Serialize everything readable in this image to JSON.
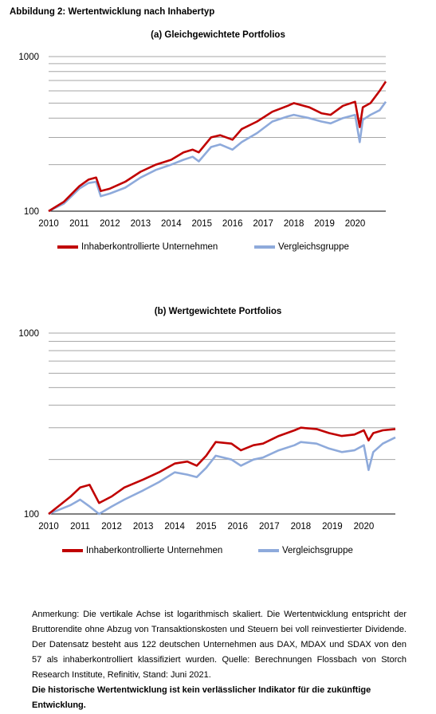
{
  "figure": {
    "title": "Abbildung 2: Wertentwicklung nach Inhabertyp"
  },
  "colors": {
    "inhaber": "#c00000",
    "vergleich": "#8eaadb",
    "grid": "#a6a6a6",
    "axis": "#000000"
  },
  "chart_data": [
    {
      "type": "line",
      "title": "(a) Gleichgewichtete Portfolios",
      "x_ticks": [
        "2010",
        "2011",
        "2012",
        "2013",
        "2014",
        "2015",
        "2016",
        "2017",
        "2018",
        "2019",
        "2020"
      ],
      "xlim": [
        2010,
        2021
      ],
      "y_scale": "log",
      "ylim": [
        100,
        1000
      ],
      "y_tick_labels": [
        "100",
        "1000"
      ],
      "grid": true,
      "legend_position": "bottom",
      "series": [
        {
          "name": "Inhaberkontrollierte Unternehmen",
          "color": "#c00000",
          "x": [
            2010.0,
            2010.5,
            2011.0,
            2011.3,
            2011.55,
            2011.7,
            2012.0,
            2012.5,
            2013.0,
            2013.5,
            2014.0,
            2014.4,
            2014.7,
            2014.9,
            2015.3,
            2015.6,
            2016.0,
            2016.3,
            2016.8,
            2017.3,
            2017.8,
            2018.0,
            2018.5,
            2018.9,
            2019.2,
            2019.6,
            2020.0,
            2020.15,
            2020.25,
            2020.5,
            2020.8,
            2021.0
          ],
          "values": [
            100,
            115,
            145,
            160,
            165,
            135,
            140,
            155,
            180,
            200,
            215,
            240,
            250,
            240,
            300,
            310,
            290,
            340,
            380,
            440,
            480,
            500,
            470,
            430,
            420,
            480,
            510,
            350,
            470,
            500,
            600,
            690
          ]
        },
        {
          "name": "Vergleichsgruppe",
          "color": "#8eaadb",
          "x": [
            2010.0,
            2010.5,
            2011.0,
            2011.3,
            2011.55,
            2011.7,
            2012.0,
            2012.5,
            2013.0,
            2013.5,
            2014.0,
            2014.4,
            2014.7,
            2014.9,
            2015.3,
            2015.6,
            2016.0,
            2016.3,
            2016.8,
            2017.3,
            2017.8,
            2018.0,
            2018.5,
            2018.9,
            2019.2,
            2019.6,
            2020.0,
            2020.15,
            2020.25,
            2020.5,
            2020.8,
            2021.0
          ],
          "values": [
            100,
            112,
            140,
            152,
            155,
            125,
            130,
            142,
            165,
            185,
            200,
            215,
            225,
            210,
            260,
            270,
            250,
            280,
            320,
            380,
            410,
            420,
            400,
            380,
            370,
            400,
            420,
            280,
            390,
            420,
            450,
            510
          ]
        }
      ]
    },
    {
      "type": "line",
      "title": "(b) Wertgewichtete Portfolios",
      "x_ticks": [
        "2010",
        "2011",
        "2012",
        "2013",
        "2014",
        "2015",
        "2016",
        "2017",
        "2018",
        "2019",
        "2020"
      ],
      "xlim": [
        2010,
        2021
      ],
      "y_scale": "log",
      "ylim": [
        100,
        1000
      ],
      "y_tick_labels": [
        "100",
        "1000"
      ],
      "grid": true,
      "legend_position": "bottom",
      "series": [
        {
          "name": "Inhaberkontrollierte Unternehmen",
          "color": "#c00000",
          "x": [
            2010.0,
            2010.3,
            2010.7,
            2011.0,
            2011.3,
            2011.6,
            2012.0,
            2012.4,
            2013.0,
            2013.5,
            2014.0,
            2014.4,
            2014.7,
            2015.0,
            2015.3,
            2015.8,
            2016.1,
            2016.5,
            2016.8,
            2017.3,
            2017.8,
            2018.0,
            2018.5,
            2018.9,
            2019.3,
            2019.7,
            2020.0,
            2020.15,
            2020.3,
            2020.6,
            2021.0
          ],
          "values": [
            100,
            110,
            125,
            140,
            145,
            115,
            125,
            140,
            155,
            170,
            190,
            195,
            185,
            210,
            250,
            245,
            225,
            240,
            245,
            270,
            290,
            300,
            295,
            280,
            270,
            275,
            290,
            255,
            280,
            290,
            295
          ]
        },
        {
          "name": "Vergleichsgruppe",
          "color": "#8eaadb",
          "x": [
            2010.0,
            2010.3,
            2010.7,
            2011.0,
            2011.3,
            2011.6,
            2012.0,
            2012.4,
            2013.0,
            2013.5,
            2014.0,
            2014.4,
            2014.7,
            2015.0,
            2015.3,
            2015.8,
            2016.1,
            2016.5,
            2016.8,
            2017.3,
            2017.8,
            2018.0,
            2018.5,
            2018.9,
            2019.3,
            2019.7,
            2020.0,
            2020.15,
            2020.3,
            2020.6,
            2021.0
          ],
          "values": [
            100,
            105,
            112,
            120,
            110,
            100,
            110,
            120,
            135,
            150,
            170,
            165,
            160,
            180,
            210,
            200,
            185,
            200,
            205,
            225,
            240,
            250,
            245,
            230,
            220,
            225,
            240,
            175,
            220,
            245,
            265
          ]
        }
      ]
    }
  ],
  "note": {
    "text": "Anmerkung: Die vertikale Achse ist logarithmisch skaliert. Die Wertentwicklung entspricht der Bruttorendite ohne Abzug von Transaktionskosten und Steuern bei voll reinvestierter Dividende. Der Datensatz besteht aus 122 deutschen Unternehmen aus DAX, MDAX und SDAX von den 57 als inhaberkontrolliert klassifiziert wurden. Quelle: Berechnungen Flossbach von Storch Research Institute, Refinitiv, Stand: Juni 2021.",
    "disclaimer": "Die historische Wertentwicklung ist kein verlässlicher Indikator für die zukünftige Entwicklung."
  }
}
